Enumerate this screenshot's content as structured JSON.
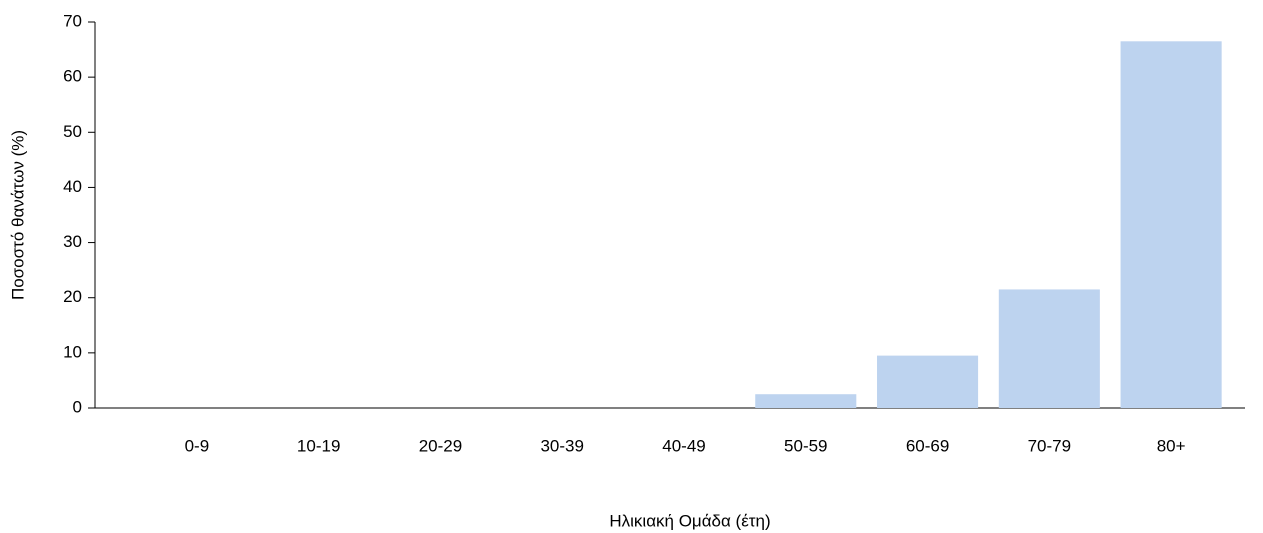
{
  "chart_data": {
    "type": "bar",
    "x_label": "Ηλικιακή Ομάδα (έτη)",
    "y_label": "Ποσοστό θανάτων (%)",
    "categories": [
      "0-9",
      "10-19",
      "20-29",
      "30-39",
      "40-49",
      "50-59",
      "60-69",
      "70-79",
      "80+"
    ],
    "values": [
      0,
      0,
      0,
      0,
      0,
      2.5,
      9.5,
      21.5,
      66.5
    ],
    "color": "#bdd3ef",
    "ylim": [
      0,
      70
    ],
    "yticks": [
      0,
      10,
      20,
      30,
      40,
      50,
      60,
      70
    ],
    "grid": false
  }
}
